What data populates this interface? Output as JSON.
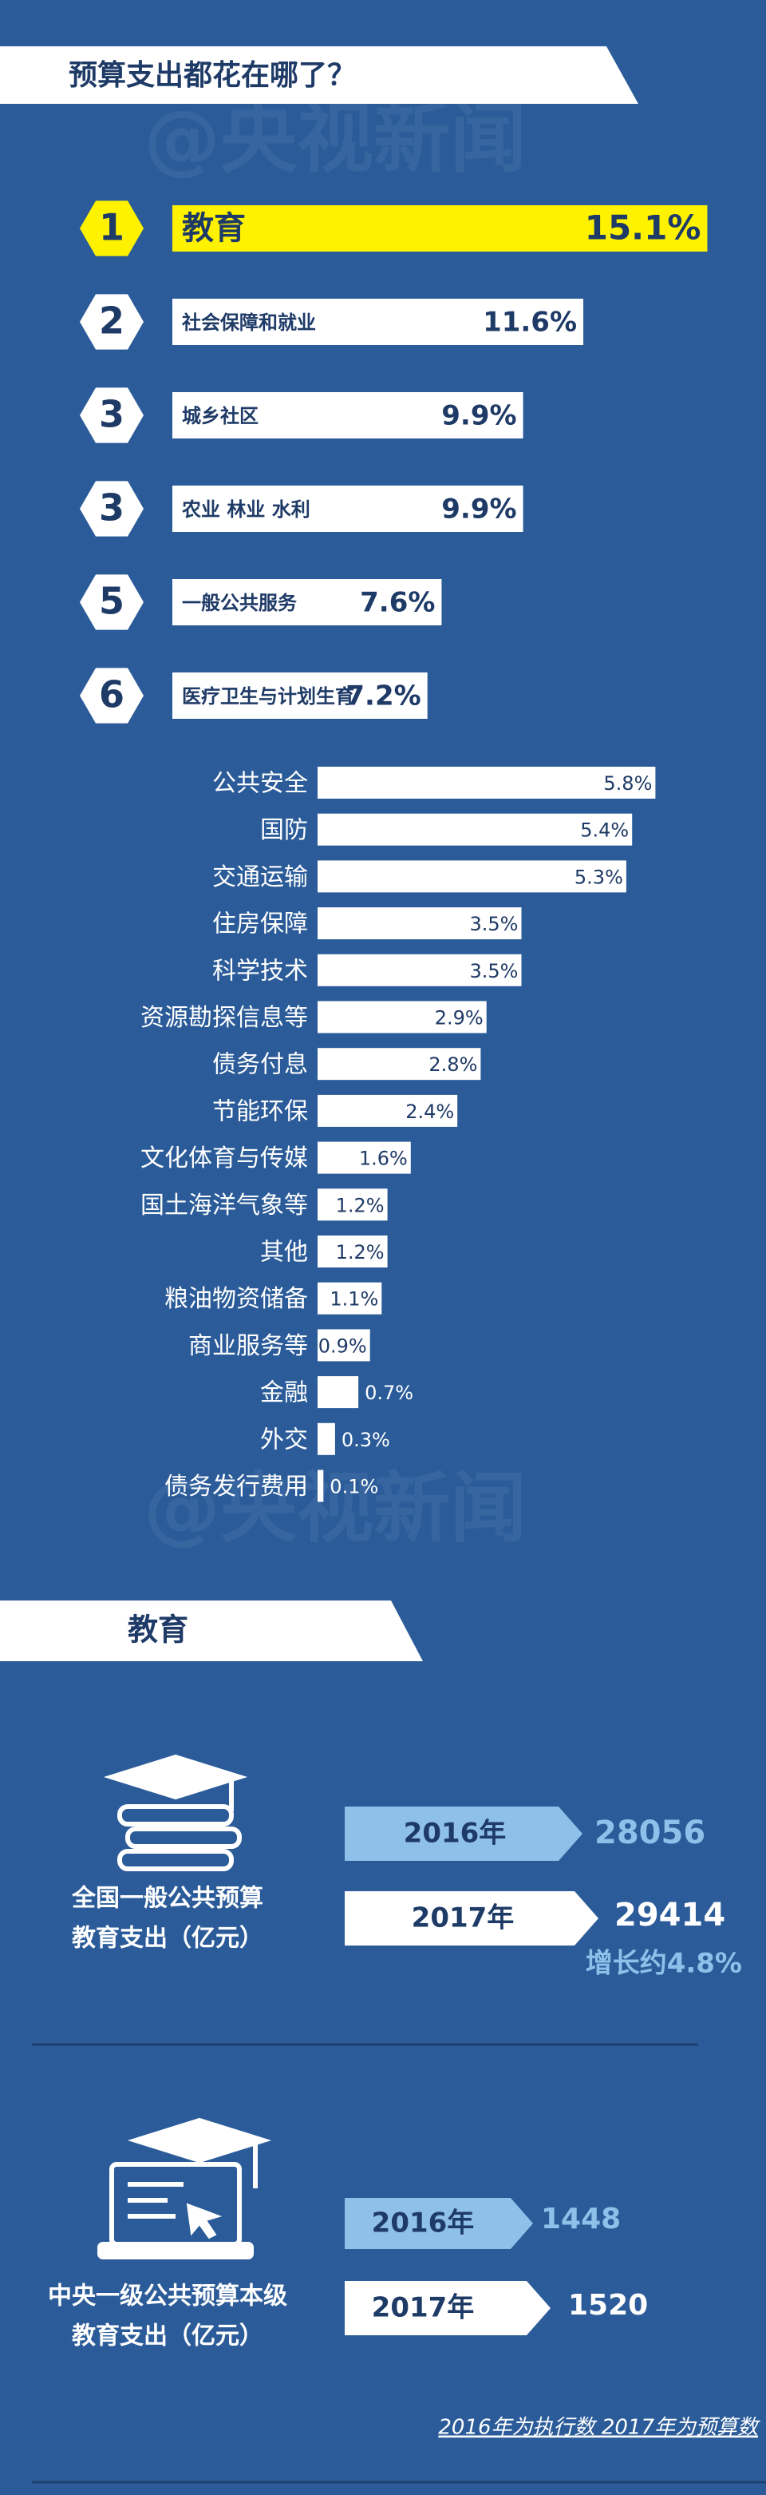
{
  "title": "预算支出都花在哪了？",
  "watermark": "@央视新闻",
  "chart_data": [
    {
      "type": "ranking",
      "ranks": [
        1,
        2,
        3,
        3,
        5,
        6
      ],
      "categories": [
        "教育",
        "社会保障和就业",
        "城乡社区",
        "农业 林业 水利",
        "一般公共服务",
        "医疗卫生与计划生育"
      ],
      "values": [
        15.1,
        11.6,
        9.9,
        9.9,
        7.6,
        7.2
      ],
      "value_labels": [
        "15.1%",
        "11.6%",
        "9.9%",
        "9.9%",
        "7.6%",
        "7.2%"
      ],
      "color": "#ffffff",
      "highlight_color": "#fff200"
    },
    {
      "type": "bar",
      "categories": [
        "公共安全",
        "国防",
        "交通运输",
        "住房保障",
        "科学技术",
        "资源勘探信息等",
        "债务付息",
        "节能环保",
        "文化体育与传媒",
        "国土海洋气象等",
        "其他",
        "粮油物资储备",
        "商业服务等",
        "金融",
        "外交",
        "债务发行费用"
      ],
      "values": [
        5.8,
        5.4,
        5.3,
        3.5,
        3.5,
        2.9,
        2.8,
        2.4,
        1.6,
        1.2,
        1.2,
        1.1,
        0.9,
        0.7,
        0.3,
        0.1
      ],
      "value_labels": [
        "5.8%",
        "5.4%",
        "5.3%",
        "3.5%",
        "3.5%",
        "2.9%",
        "2.8%",
        "2.4%",
        "1.6%",
        "1.2%",
        "1.2%",
        "1.1%",
        "0.9%",
        "0.7%",
        "0.3%",
        "0.1%"
      ],
      "color": "#ffffff"
    }
  ],
  "education": {
    "title": "教育",
    "blocks": [
      {
        "label_lines": [
          "全国一般公共预算",
          "教育支出（亿元）"
        ],
        "rows": [
          {
            "year": "2016年",
            "value": 28056
          },
          {
            "year": "2017年",
            "value": 29414
          }
        ],
        "growth": "增长约4.8%"
      },
      {
        "label_lines": [
          "中央一级公共预算本级",
          "教育支出（亿元）"
        ],
        "rows": [
          {
            "year": "2016年",
            "value": 1448
          },
          {
            "year": "2017年",
            "value": 1520
          }
        ]
      }
    ],
    "note": "2016年为执行数 2017年为预算数"
  }
}
